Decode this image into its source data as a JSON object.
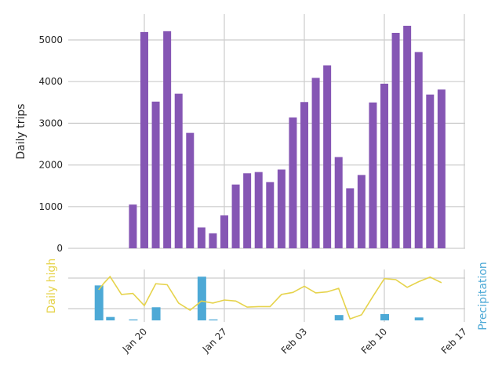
{
  "chart_data": [
    {
      "type": "bar",
      "panel": "top",
      "ylabel": "Daily trips",
      "ylim": [
        0,
        5500
      ],
      "yticks": [
        0,
        1000,
        2000,
        3000,
        4000,
        5000
      ],
      "xticks": [
        "2019-01-20",
        "2019-01-27",
        "2019-02-03",
        "2019-02-10",
        "2019-02-17"
      ],
      "xlim": [
        "2019-01-14",
        "2019-02-18"
      ],
      "grid": true,
      "bar_color": "#8556b4",
      "dates": [
        "2019-01-16",
        "2019-01-17",
        "2019-01-18",
        "2019-01-19",
        "2019-01-20",
        "2019-01-21",
        "2019-01-22",
        "2019-01-23",
        "2019-01-24",
        "2019-01-25",
        "2019-01-26",
        "2019-01-27",
        "2019-01-28",
        "2019-01-29",
        "2019-01-30",
        "2019-01-31",
        "2019-02-01",
        "2019-02-02",
        "2019-02-03",
        "2019-02-04",
        "2019-02-05",
        "2019-02-06",
        "2019-02-07",
        "2019-02-08",
        "2019-02-09",
        "2019-02-10",
        "2019-02-11",
        "2019-02-12",
        "2019-02-13",
        "2019-02-14",
        "2019-02-15",
        "2019-02-16"
      ],
      "values": [
        0,
        0,
        0,
        1050,
        5190,
        3520,
        5210,
        3710,
        2770,
        500,
        360,
        790,
        1530,
        1800,
        1830,
        1590,
        1890,
        3140,
        3510,
        4090,
        4390,
        2190,
        1440,
        1760,
        3500,
        3950,
        5170,
        5340,
        4710,
        3690,
        3810,
        0
      ]
    },
    {
      "type": "line",
      "panel": "bottom",
      "ylabel_left": "Daily high",
      "ylabel_right": "Precipitation",
      "line_color": "#e6d34b",
      "bar_color": "#4da9d6",
      "xticks": [
        "Jan 20",
        "Jan 27",
        "Feb 03",
        "Feb 10",
        "Feb 17"
      ],
      "grid": true,
      "high_dates": [
        "2019-01-16",
        "2019-01-16.5",
        "2019-01-17",
        "2019-01-18",
        "2019-01-19",
        "2019-01-20",
        "2019-01-21",
        "2019-01-22",
        "2019-01-23",
        "2019-01-24",
        "2019-01-25",
        "2019-01-26",
        "2019-01-27",
        "2019-01-28",
        "2019-01-29",
        "2019-01-30",
        "2019-01-31",
        "2019-02-01",
        "2019-02-02",
        "2019-02-03",
        "2019-02-04",
        "2019-02-05",
        "2019-02-06",
        "2019-02-07",
        "2019-02-08",
        "2019-02-09",
        "2019-02-10",
        "2019-02-11",
        "2019-02-12",
        "2019-02-13",
        "2019-02-14",
        "2019-02-15"
      ],
      "high_values": [
        0.6,
        0.74,
        0.86,
        0.51,
        0.53,
        0.29,
        0.72,
        0.7,
        0.34,
        0.2,
        0.38,
        0.34,
        0.4,
        0.38,
        0.26,
        0.27,
        0.27,
        0.51,
        0.55,
        0.67,
        0.54,
        0.56,
        0.63,
        0.03,
        0.11,
        0.47,
        0.82,
        0.8,
        0.65,
        0.76,
        0.85,
        0.74
      ],
      "precip_values": [
        0.72,
        0.07,
        0,
        0.02,
        0,
        0.27,
        0,
        0,
        0,
        0.9,
        0.02,
        0,
        0,
        0,
        0,
        0,
        0,
        0,
        0,
        0,
        0,
        0.11,
        0,
        0,
        0,
        0.13,
        0,
        0,
        0.06,
        0,
        0,
        0
      ]
    }
  ]
}
